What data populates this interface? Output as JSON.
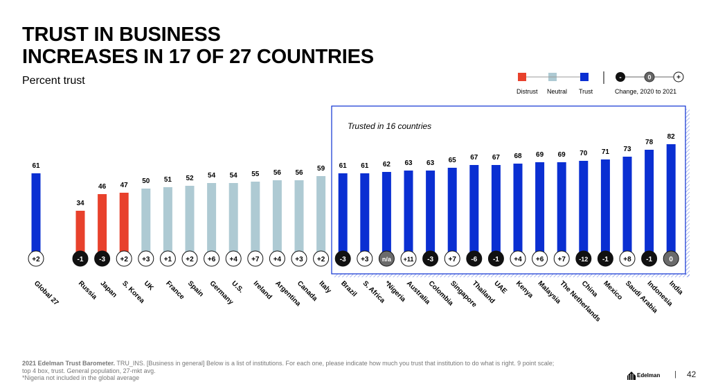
{
  "title_line1": "TRUST IN BUSINESS",
  "title_line2": "INCREASES IN 17 OF 27 COUNTRIES",
  "subtitle": "Percent trust",
  "legend": {
    "distrust": "Distrust",
    "neutral": "Neutral",
    "trust": "Trust",
    "change_label": "Change, 2020 to 2021",
    "change_minus": "-",
    "change_zero": "0",
    "change_plus": "+"
  },
  "annotation": "Trusted in 16 countries",
  "colors": {
    "distrust": "#e8412c",
    "neutral": "#aecad3",
    "trust": "#0a2fd2"
  },
  "footnote": {
    "bold": "2021 Edelman Trust Barometer.",
    "line1": " TRU_INS. [Business in general] Below is a list of institutions. For each one, please indicate how much you trust that institution to do what is right. 9 point scale;",
    "line2": "top 4 box, trust. General population, 27-mkt avg.",
    "line3": "*Nigeria not included in the global average"
  },
  "brand": "Edelman",
  "page_number": "42",
  "chart_data": {
    "type": "bar",
    "ylim": [
      0,
      100
    ],
    "categories": [
      "Global 27",
      "Russia",
      "Japan",
      "S. Korea",
      "UK",
      "France",
      "Spain",
      "Germany",
      "U.S.",
      "Ireland",
      "Argentina",
      "Canada",
      "Italy",
      "Brazil",
      "S. Africa",
      "*Nigeria",
      "Australia",
      "Colombia",
      "Singapore",
      "Thailand",
      "UAE",
      "Kenya",
      "Malaysia",
      "The Netherlands",
      "China",
      "Mexico",
      "Saudi Arabia",
      "Indonesia",
      "India"
    ],
    "values": [
      61,
      34,
      46,
      47,
      50,
      51,
      52,
      54,
      54,
      55,
      56,
      56,
      59,
      61,
      61,
      62,
      63,
      63,
      65,
      67,
      67,
      68,
      69,
      69,
      70,
      71,
      73,
      78,
      82
    ],
    "trust_level": [
      "trust",
      "distrust",
      "distrust",
      "distrust",
      "neutral",
      "neutral",
      "neutral",
      "neutral",
      "neutral",
      "neutral",
      "neutral",
      "neutral",
      "neutral",
      "trust",
      "trust",
      "trust",
      "trust",
      "trust",
      "trust",
      "trust",
      "trust",
      "trust",
      "trust",
      "trust",
      "trust",
      "trust",
      "trust",
      "trust",
      "trust"
    ],
    "change": [
      "+2",
      "-1",
      "-3",
      "+2",
      "+3",
      "+1",
      "+2",
      "+6",
      "+4",
      "+7",
      "+4",
      "+3",
      "+2",
      "-3",
      "+3",
      "n/a",
      "+11",
      "-3",
      "+7",
      "-6",
      "-1",
      "+4",
      "+6",
      "+7",
      "-12",
      "-1",
      "+8",
      "-1",
      "0"
    ]
  }
}
